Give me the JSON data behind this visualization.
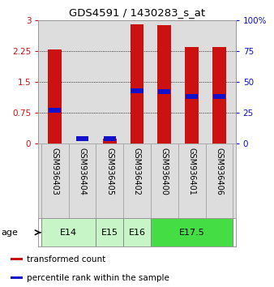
{
  "title": "GDS4591 / 1430283_s_at",
  "samples": [
    "GSM936403",
    "GSM936404",
    "GSM936405",
    "GSM936402",
    "GSM936400",
    "GSM936401",
    "GSM936406"
  ],
  "transformed_counts": [
    2.28,
    0.0,
    0.12,
    2.9,
    2.88,
    2.35,
    2.35
  ],
  "percentile_ranks_pct": [
    27,
    4,
    4,
    43,
    42,
    38,
    38
  ],
  "age_groups": [
    {
      "label": "E14",
      "start": 0,
      "end": 2,
      "color": "#c8f5c8"
    },
    {
      "label": "E15",
      "start": 2,
      "end": 3,
      "color": "#c8f5c8"
    },
    {
      "label": "E16",
      "start": 3,
      "end": 4,
      "color": "#c8f5c8"
    },
    {
      "label": "E17.5",
      "start": 4,
      "end": 7,
      "color": "#44dd44"
    }
  ],
  "bar_color": "#cc1111",
  "pct_color": "#1111cc",
  "bar_width": 0.5,
  "ylim_left": [
    0,
    3.0
  ],
  "ylim_right": [
    0,
    100
  ],
  "yticks_left": [
    0,
    0.75,
    1.5,
    2.25,
    3.0
  ],
  "ytick_labels_left": [
    "0",
    "0.75",
    "1.5",
    "2.25",
    "3"
  ],
  "yticks_right": [
    0,
    25,
    50,
    75,
    100
  ],
  "ytick_labels_right": [
    "0",
    "25",
    "50",
    "75",
    "100%"
  ],
  "legend_items": [
    {
      "label": "transformed count",
      "color": "#cc1111"
    },
    {
      "label": "percentile rank within the sample",
      "color": "#1111cc"
    }
  ],
  "age_label": "age",
  "bar_area_bg": "#dddddd"
}
